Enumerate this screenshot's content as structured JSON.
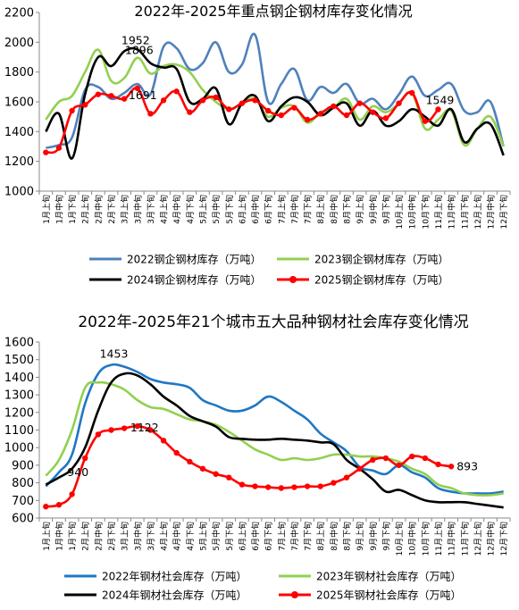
{
  "x_labels": [
    "1月上旬",
    "1月中旬",
    "1月下旬",
    "2月上旬",
    "2月中旬",
    "2月下旬",
    "3月上旬",
    "3月中旬",
    "3月下旬",
    "4月上旬",
    "4月中旬",
    "4月下旬",
    "5月上旬",
    "5月中旬",
    "5月下旬",
    "6月上旬",
    "6月中旬",
    "6月下旬",
    "7月上旬",
    "7月中旬",
    "7月下旬",
    "8月上旬",
    "8月中旬",
    "8月下旬",
    "9月上旬",
    "9月中旬",
    "9月下旬",
    "10月上旬",
    "10月中旬",
    "10月下旬",
    "11月上旬",
    "11月中旬",
    "11月下旬",
    "12月上旬",
    "12月中旬",
    "12月下旬"
  ],
  "chart_data": [
    {
      "type": "line",
      "title": "2022年-2025年重点钢企钢材库存变化情况",
      "ylim": [
        1000,
        2200
      ],
      "yticks": [
        1000,
        1200,
        1400,
        1600,
        1800,
        2000,
        2200
      ],
      "grid": false,
      "legend_position": "bottom",
      "annotations": [
        "1952",
        "1896",
        "1691",
        "1549"
      ],
      "series": [
        {
          "name": "2022钢企钢材库存（万吨）",
          "color": "#4f81bd",
          "values": [
            1290,
            1310,
            1360,
            1680,
            1700,
            1620,
            1660,
            1720,
            1650,
            1970,
            1960,
            1820,
            1860,
            2000,
            1800,
            1850,
            2050,
            1600,
            1720,
            1820,
            1610,
            1700,
            1660,
            1720,
            1590,
            1620,
            1550,
            1650,
            1770,
            1640,
            1680,
            1720,
            1540,
            1530,
            1600,
            1300
          ]
        },
        {
          "name": "2023钢企钢材库存（万吨）",
          "color": "#92d050",
          "values": [
            1480,
            1600,
            1640,
            1800,
            1950,
            1740,
            1760,
            1896,
            1790,
            1840,
            1850,
            1800,
            1680,
            1600,
            1550,
            1590,
            1620,
            1500,
            1560,
            1570,
            1460,
            1530,
            1560,
            1620,
            1480,
            1570,
            1530,
            1590,
            1660,
            1420,
            1480,
            1540,
            1310,
            1420,
            1500,
            1300
          ]
        },
        {
          "name": "2024钢企钢材库存（万吨）",
          "color": "#000000",
          "values": [
            1400,
            1520,
            1220,
            1650,
            1900,
            1840,
            1940,
            1952,
            1860,
            1830,
            1820,
            1600,
            1620,
            1690,
            1450,
            1590,
            1640,
            1470,
            1570,
            1630,
            1600,
            1510,
            1560,
            1590,
            1440,
            1540,
            1440,
            1470,
            1550,
            1500,
            1440,
            1550,
            1330,
            1420,
            1450,
            1240
          ]
        },
        {
          "name": "2025钢企钢材库存（万吨）",
          "color": "#ff0000",
          "values": [
            1260,
            1290,
            1540,
            1580,
            1650,
            1640,
            1620,
            1691,
            1520,
            1610,
            1670,
            1530,
            1610,
            1630,
            1550,
            1590,
            1610,
            1540,
            1510,
            1560,
            1480,
            1520,
            1570,
            1510,
            1590,
            1530,
            1490,
            1590,
            1660,
            1470,
            1549
          ]
        }
      ]
    },
    {
      "type": "line",
      "title": "2022年-2025年21个城市五大品种钢材社会库存变化情况",
      "ylim": [
        600,
        1600
      ],
      "yticks": [
        600,
        700,
        800,
        900,
        1000,
        1100,
        1200,
        1300,
        1400,
        1500,
        1600
      ],
      "grid": false,
      "legend_position": "bottom",
      "annotations": [
        "1453",
        "1122",
        "940",
        "893"
      ],
      "series": [
        {
          "name": "2022年钢材社会库存（万吨）",
          "color": "#1f77c4",
          "values": [
            780,
            860,
            960,
            1250,
            1420,
            1470,
            1460,
            1430,
            1390,
            1370,
            1360,
            1340,
            1270,
            1240,
            1210,
            1210,
            1240,
            1290,
            1260,
            1210,
            1160,
            1080,
            1030,
            980,
            890,
            870,
            850,
            900,
            860,
            830,
            770,
            750,
            740,
            740,
            740,
            750
          ]
        },
        {
          "name": "2023年钢材社会库存（万吨）",
          "color": "#92d050",
          "values": [
            840,
            930,
            1100,
            1340,
            1370,
            1360,
            1330,
            1270,
            1230,
            1220,
            1190,
            1160,
            1150,
            1130,
            1090,
            1040,
            990,
            960,
            930,
            940,
            930,
            940,
            960,
            960,
            950,
            950,
            940,
            920,
            880,
            850,
            790,
            770,
            740,
            730,
            730,
            740
          ]
        },
        {
          "name": "2024年钢材社会库存（万吨）",
          "color": "#000000",
          "values": [
            790,
            830,
            880,
            1000,
            1210,
            1370,
            1420,
            1410,
            1360,
            1290,
            1240,
            1180,
            1150,
            1120,
            1060,
            1050,
            1045,
            1045,
            1050,
            1045,
            1040,
            1030,
            1020,
            930,
            880,
            820,
            750,
            760,
            730,
            700,
            690,
            690,
            690,
            680,
            670,
            660
          ]
        },
        {
          "name": "2025年钢材社会库存（万吨）",
          "color": "#ff0000",
          "values": [
            665,
            675,
            735,
            940,
            1075,
            1100,
            1110,
            1122,
            1100,
            1040,
            970,
            920,
            880,
            850,
            830,
            790,
            780,
            775,
            770,
            775,
            780,
            780,
            800,
            830,
            880,
            930,
            940,
            900,
            950,
            940,
            905,
            893
          ]
        }
      ]
    }
  ]
}
